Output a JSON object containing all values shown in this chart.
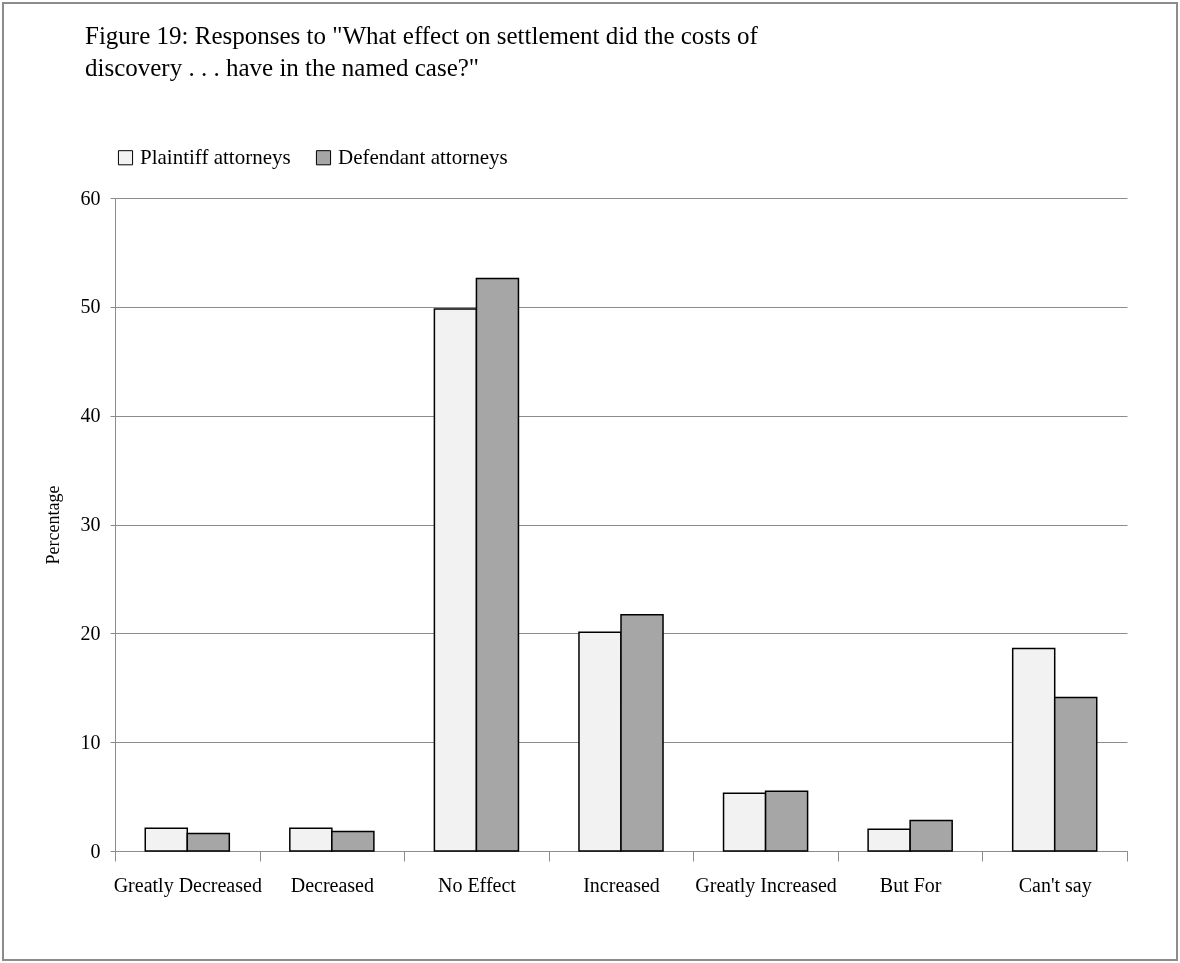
{
  "chart_data": {
    "type": "bar",
    "title": "Figure 19: Responses to \"What effect on settlement did the costs of\ndiscovery . . . have in the named case?\"",
    "ylabel": "Percentage",
    "categories": [
      "Greatly\nDecreased",
      "Decreased",
      "No Effect",
      "Increased",
      "Greatly\nIncreased",
      "But For",
      "Can't say"
    ],
    "series": [
      {
        "name": "Plaintiff attorneys",
        "color": "#f2f2f2",
        "values": [
          2.1,
          2.1,
          49.8,
          20.1,
          5.3,
          2.0,
          18.6
        ]
      },
      {
        "name": "Defendant attorneys",
        "color": "#a6a6a6",
        "values": [
          1.6,
          1.8,
          52.6,
          21.7,
          5.5,
          2.8,
          14.1
        ]
      }
    ],
    "ylim": [
      0,
      60
    ],
    "yticks": [
      0,
      10,
      20,
      30,
      40,
      50,
      60
    ],
    "grid": "y",
    "legend": "top"
  }
}
